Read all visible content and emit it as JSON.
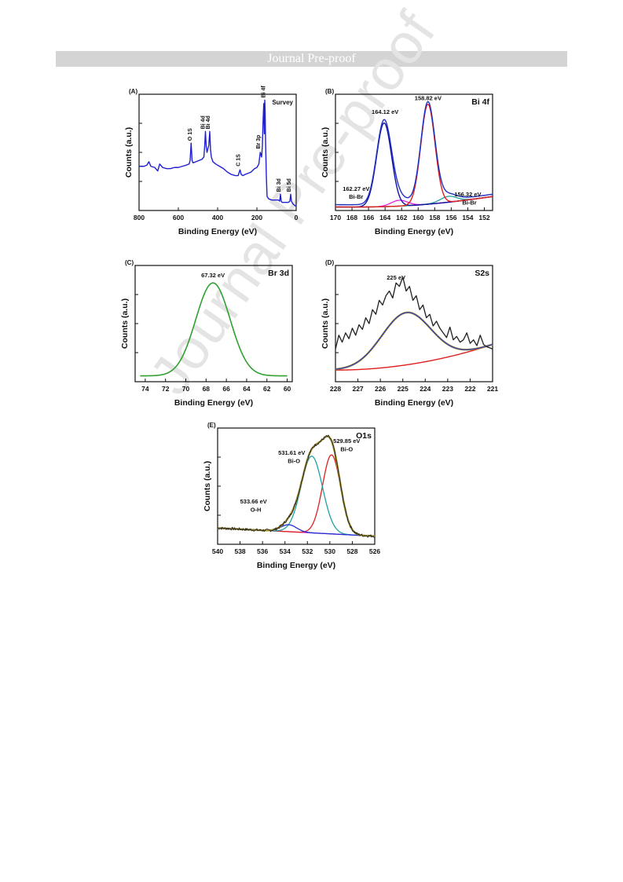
{
  "header": {
    "banner": "Journal Pre-proof"
  },
  "watermark": {
    "text": "Journal Pre-proof"
  },
  "chart_data": [
    {
      "id": "A",
      "type": "line",
      "panel_label": "(A)",
      "title": "Survey",
      "xlabel": "Binding Energy (eV)",
      "ylabel": "Counts (a.u.)",
      "xlim": [
        800,
        0
      ],
      "ylim": [
        0,
        1
      ],
      "x_reversed": true,
      "xticks": [
        800,
        600,
        400,
        200,
        0
      ],
      "color": "#2020d0",
      "series": [
        {
          "x": [
            800,
            775,
            760,
            750,
            740,
            720,
            705,
            695,
            680,
            660,
            640,
            620,
            600,
            580,
            560,
            545,
            540,
            535,
            530,
            525,
            510,
            495,
            480,
            470,
            466,
            462,
            458,
            454,
            445,
            440,
            436,
            432,
            424,
            410,
            390,
            370,
            350,
            330,
            310,
            295,
            290,
            286,
            280,
            272,
            260,
            245,
            230,
            212,
            200,
            190,
            183,
            176,
            172,
            168,
            165,
            162,
            160,
            158,
            156,
            154,
            152,
            150,
            148,
            140,
            125,
            100,
            90,
            84,
            80,
            76,
            72,
            64,
            55,
            40,
            32,
            28,
            24,
            18,
            12,
            5,
            0
          ],
          "y": [
            0.38,
            0.38,
            0.39,
            0.42,
            0.38,
            0.37,
            0.34,
            0.4,
            0.37,
            0.36,
            0.36,
            0.37,
            0.37,
            0.38,
            0.39,
            0.4,
            0.43,
            0.58,
            0.43,
            0.41,
            0.42,
            0.43,
            0.44,
            0.46,
            0.55,
            0.68,
            0.55,
            0.5,
            0.56,
            0.68,
            0.52,
            0.46,
            0.42,
            0.4,
            0.38,
            0.36,
            0.33,
            0.31,
            0.3,
            0.3,
            0.33,
            0.35,
            0.31,
            0.3,
            0.31,
            0.32,
            0.33,
            0.36,
            0.37,
            0.4,
            0.5,
            0.46,
            0.56,
            0.8,
            0.92,
            0.66,
            0.95,
            0.85,
            0.6,
            0.45,
            0.3,
            0.2,
            0.12,
            0.1,
            0.09,
            0.09,
            0.09,
            0.08,
            0.14,
            0.08,
            0.07,
            0.07,
            0.07,
            0.07,
            0.08,
            0.14,
            0.08,
            0.06,
            0.05,
            0.04,
            0.04
          ]
        }
      ],
      "annotations": [
        {
          "text": "O 1S",
          "x": 531,
          "y": 0.6
        },
        {
          "text": "Bi 4d",
          "x": 465,
          "y": 0.7
        },
        {
          "text": "Bi 4d",
          "x": 440,
          "y": 0.7
        },
        {
          "text": "C 1S",
          "x": 285,
          "y": 0.38
        },
        {
          "text": "Br 3p",
          "x": 183,
          "y": 0.53
        },
        {
          "text": "Bi 4f",
          "x": 158,
          "y": 0.97
        },
        {
          "text": "Bi 3d",
          "x": 80,
          "y": 0.16
        },
        {
          "text": "Bi 5d",
          "x": 28,
          "y": 0.16
        }
      ]
    },
    {
      "id": "B",
      "type": "line",
      "panel_label": "(B)",
      "title": "Bi 4f",
      "xlabel": "Binding Energy (eV)",
      "ylabel": "Counts (a.u.)",
      "xlim": [
        170,
        151
      ],
      "ylim": [
        0,
        1
      ],
      "x_reversed": true,
      "xticks": [
        170,
        168,
        166,
        164,
        162,
        160,
        158,
        156,
        154,
        152
      ],
      "peaks": [
        {
          "center": 164.12,
          "height": 0.72,
          "width": 0.9,
          "color": "#1010a0"
        },
        {
          "center": 158.82,
          "height": 0.86,
          "width": 0.85,
          "color": "#e02020"
        },
        {
          "center": 162.27,
          "height": 0.05,
          "width": 1.0,
          "color": "#e020e0"
        },
        {
          "center": 156.32,
          "height": 0.05,
          "width": 1.0,
          "color": "#20a0a0"
        }
      ],
      "background": {
        "left": 0.03,
        "right": 0.12,
        "mid": 0.0,
        "color": "#a08020"
      },
      "annotations": [
        {
          "text": "164.12 eV",
          "x": 164.0,
          "y": 0.83
        },
        {
          "text": "158.82 eV",
          "x": 158.8,
          "y": 0.95
        },
        {
          "text": "162.27 eV",
          "x": 167.5,
          "y": 0.17
        },
        {
          "text": "Bi-Br",
          "x": 167.5,
          "y": 0.1
        },
        {
          "text": "156.32 eV",
          "x": 154.0,
          "y": 0.12
        },
        {
          "text": "Bi-Br",
          "x": 153.8,
          "y": 0.05
        }
      ]
    },
    {
      "id": "C",
      "type": "line",
      "panel_label": "(C)",
      "title": "Br 3d",
      "xlabel": "Binding Energy (eV)",
      "ylabel": "Counts (a.u.)",
      "xlim": [
        75,
        59.5
      ],
      "ylim": [
        0,
        1
      ],
      "x_reversed": true,
      "xticks": [
        74,
        72,
        70,
        68,
        66,
        64,
        62,
        60
      ],
      "peaks": [
        {
          "center": 67.32,
          "height": 0.8,
          "width": 1.7,
          "color": "#30a030"
        }
      ],
      "baseline": 0.05,
      "annotations": [
        {
          "text": "67.32 eV",
          "x": 67.32,
          "y": 0.9
        }
      ]
    },
    {
      "id": "D",
      "type": "line",
      "panel_label": "(D)",
      "title": "S2s",
      "xlabel": "Binding Energy (eV)",
      "ylabel": "Counts (a.u.)",
      "xlim": [
        228,
        221
      ],
      "ylim": [
        0,
        1
      ],
      "x_reversed": true,
      "xticks": [
        228,
        227,
        226,
        225,
        224,
        223,
        222,
        221
      ],
      "raw": {
        "color": "#202020",
        "x": [
          228,
          227.85,
          227.7,
          227.55,
          227.4,
          227.25,
          227.1,
          226.95,
          226.8,
          226.65,
          226.5,
          226.35,
          226.2,
          226.05,
          225.9,
          225.75,
          225.6,
          225.45,
          225.3,
          225.15,
          225.0,
          224.85,
          224.7,
          224.55,
          224.4,
          224.25,
          224.1,
          223.95,
          223.8,
          223.65,
          223.5,
          223.35,
          223.2,
          223.05,
          222.9,
          222.75,
          222.6,
          222.45,
          222.3,
          222.15,
          222.0,
          221.85,
          221.7,
          221.55,
          221.4,
          221.25,
          221.1,
          221.0
        ],
        "y": [
          0.28,
          0.4,
          0.34,
          0.42,
          0.37,
          0.46,
          0.4,
          0.49,
          0.45,
          0.55,
          0.5,
          0.62,
          0.58,
          0.7,
          0.66,
          0.74,
          0.78,
          0.72,
          0.85,
          0.82,
          0.9,
          0.78,
          0.82,
          0.7,
          0.74,
          0.62,
          0.66,
          0.55,
          0.58,
          0.48,
          0.52,
          0.46,
          0.42,
          0.38,
          0.47,
          0.36,
          0.39,
          0.34,
          0.36,
          0.42,
          0.33,
          0.36,
          0.31,
          0.4,
          0.32,
          0.3,
          0.29,
          0.28
        ]
      },
      "fit_peak": {
        "center": 224.85,
        "height": 0.45,
        "width": 1.1,
        "color": "#2030d0"
      },
      "background": {
        "left": 0.1,
        "right": 0.32,
        "color": "#e02020"
      },
      "envelope_color": "#a09030",
      "annotations": [
        {
          "text": "225 eV",
          "x": 225.3,
          "y": 0.88
        }
      ]
    },
    {
      "id": "E",
      "type": "line",
      "panel_label": "(E)",
      "title": "O1s",
      "xlabel": "Binding Energy (eV)",
      "ylabel": "Counts (a.u.)",
      "xlim": [
        540,
        526
      ],
      "ylim": [
        0,
        1
      ],
      "x_reversed": true,
      "xticks": [
        540,
        538,
        536,
        534,
        532,
        530,
        528,
        526
      ],
      "peaks": [
        {
          "center": 529.85,
          "height": 0.68,
          "width": 0.8,
          "color": "#e02020"
        },
        {
          "center": 531.61,
          "height": 0.66,
          "width": 0.95,
          "color": "#20a0a0"
        },
        {
          "center": 533.66,
          "height": 0.06,
          "width": 0.7,
          "color": "#2030d0"
        }
      ],
      "baseline": {
        "left": 0.14,
        "right": 0.07,
        "color": "#e020e0"
      },
      "envelope_color": "#a09030",
      "raw_color": "#202020",
      "annotations": [
        {
          "text": "529.85 eV",
          "x": 528.5,
          "y": 0.87
        },
        {
          "text": "Bi-O",
          "x": 528.5,
          "y": 0.8
        },
        {
          "text": "531.61 eV",
          "x": 533.4,
          "y": 0.77
        },
        {
          "text": "Bi-O",
          "x": 533.2,
          "y": 0.7
        },
        {
          "text": "533.66 eV",
          "x": 536.8,
          "y": 0.35
        },
        {
          "text": "O-H",
          "x": 536.6,
          "y": 0.28
        }
      ]
    }
  ]
}
